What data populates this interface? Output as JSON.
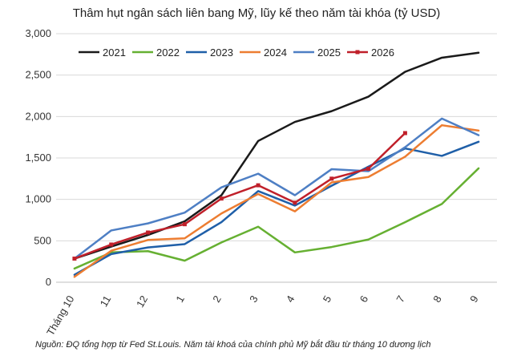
{
  "chart_data": {
    "type": "line",
    "title": "Thâm hụt ngân sách liên bang Mỹ, lũy kế theo năm tài khóa (tỷ USD)",
    "categories": [
      "Tháng 10",
      "11",
      "12",
      "1",
      "2",
      "3",
      "4",
      "5",
      "6",
      "7",
      "8",
      "9"
    ],
    "ylim": [
      0,
      3000
    ],
    "yticks": [
      "0",
      "500",
      "1,000",
      "1,500",
      "2,000",
      "2,500",
      "3,000"
    ],
    "ytick_values": [
      0,
      500,
      1000,
      1500,
      2000,
      2500,
      3000
    ],
    "grid": true,
    "legend_position": "top",
    "series": [
      {
        "name": "2021",
        "color": "#1a1a1a",
        "marker": false,
        "values": [
          285,
          430,
          570,
          735,
          1050,
          1705,
          1935,
          2065,
          2240,
          2540,
          2710,
          2770
        ]
      },
      {
        "name": "2022",
        "color": "#66b032",
        "marker": false,
        "values": [
          165,
          360,
          375,
          260,
          480,
          670,
          360,
          425,
          515,
          725,
          945,
          1375
        ]
      },
      {
        "name": "2023",
        "color": "#1f5fa8",
        "marker": false,
        "values": [
          90,
          340,
          420,
          460,
          725,
          1100,
          925,
          1165,
          1395,
          1615,
          1525,
          1695
        ]
      },
      {
        "name": "2024",
        "color": "#ed7d31",
        "marker": false,
        "values": [
          65,
          380,
          510,
          530,
          830,
          1065,
          855,
          1205,
          1270,
          1515,
          1895,
          1830
        ]
      },
      {
        "name": "2025",
        "color": "#4e7fc4",
        "marker": false,
        "values": [
          285,
          625,
          710,
          840,
          1145,
          1310,
          1050,
          1365,
          1340,
          1630,
          1975,
          1775
        ]
      },
      {
        "name": "2026",
        "color": "#c0202a",
        "marker": true,
        "values": [
          285,
          455,
          600,
          700,
          1010,
          1170,
          960,
          1250,
          1370,
          1800,
          null,
          null
        ]
      }
    ]
  },
  "source_note": "Nguồn: ĐQ tổng hợp từ Fed St.Louis. Năm tài khoá của chính phủ Mỹ bắt đầu từ tháng 10 dương lịch"
}
